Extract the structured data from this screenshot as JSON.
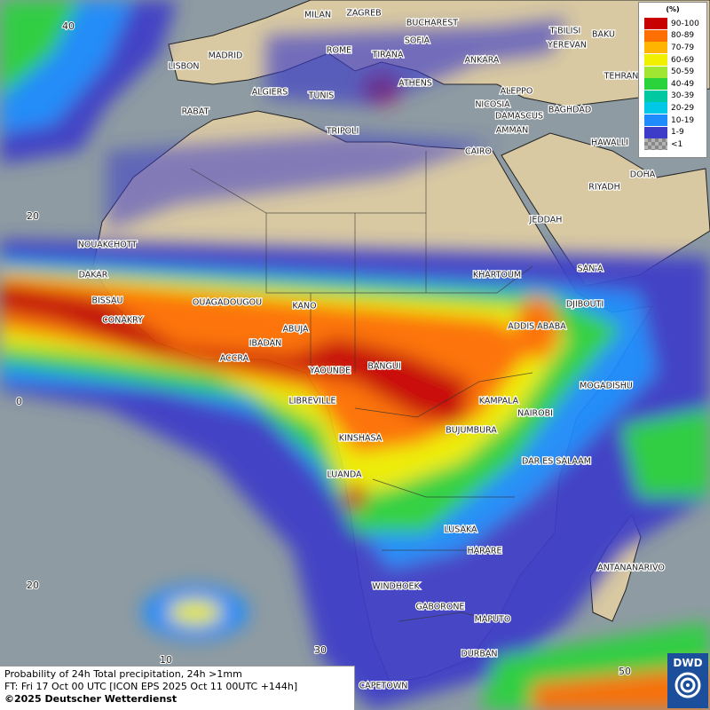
{
  "legend": {
    "title": "(%)",
    "items": [
      {
        "label": "90-100",
        "color": "#c80000"
      },
      {
        "label": "80-89",
        "color": "#ff6e00"
      },
      {
        "label": "70-79",
        "color": "#ffb400"
      },
      {
        "label": "60-69",
        "color": "#f0f000"
      },
      {
        "label": "50-59",
        "color": "#a0e632"
      },
      {
        "label": "40-49",
        "color": "#2ad23c"
      },
      {
        "label": "30-39",
        "color": "#00c8a0"
      },
      {
        "label": "20-29",
        "color": "#00c8e6"
      },
      {
        "label": "10-19",
        "color": "#1e8cff"
      },
      {
        "label": "1-9",
        "color": "#3c3cc8"
      },
      {
        "label": "<1",
        "color": "#b4b4b4"
      }
    ]
  },
  "cities": [
    "MILAN",
    "ZAGREB",
    "BUCHAREST",
    "T'BILISI",
    "BAKU",
    "MADRID",
    "ROME",
    "SOFIA",
    "TIRANA",
    "ANKARA",
    "YEREVAN",
    "LISBON",
    "TEHRAN",
    "ALGIERS",
    "TUNIS",
    "ATHENS",
    "ALEPPO",
    "RABAT",
    "NICOSIA",
    "BAGHDAD",
    "DAMASCUS",
    "TRIPOLI",
    "AMMAN",
    "HAWALLI",
    "CAIRO",
    "DOHA",
    "RIYADH",
    "JEDDAH",
    "NOUAKCHOTT",
    "DAKAR",
    "KHARTOUM",
    "SAN'A",
    "BISSAU",
    "OUAGADOUGOU",
    "KANO",
    "DJIBOUTI",
    "CONAKRY",
    "ABUJA",
    "ADDIS ABABA",
    "IBADAN",
    "ACCRA",
    "BANGUI",
    "YAOUNDE",
    "MOGADISHU",
    "LIBREVILLE",
    "KAMPALA",
    "NAIROBI",
    "BUJUMBURA",
    "KINSHASA",
    "DAR ES SALAAM",
    "LUANDA",
    "LUSAKA",
    "HARARE",
    "ANTANANARIVO",
    "WINDHOEK",
    "GABORONE",
    "MAPUTO",
    "DURBAN",
    "CAPETOWN"
  ],
  "grid_labels": [
    "40",
    "20",
    "0",
    "20",
    "10",
    "30",
    "50"
  ],
  "footer": {
    "line1": "Probability of 24h Total precipitation, 24h >1mm",
    "line2": "FT: Fri 17 Oct 00 UTC [ICON EPS 2025 Oct 11 00UTC +144h]",
    "line3": "©2025 Deutscher Wetterdienst"
  },
  "logo": "DWD"
}
